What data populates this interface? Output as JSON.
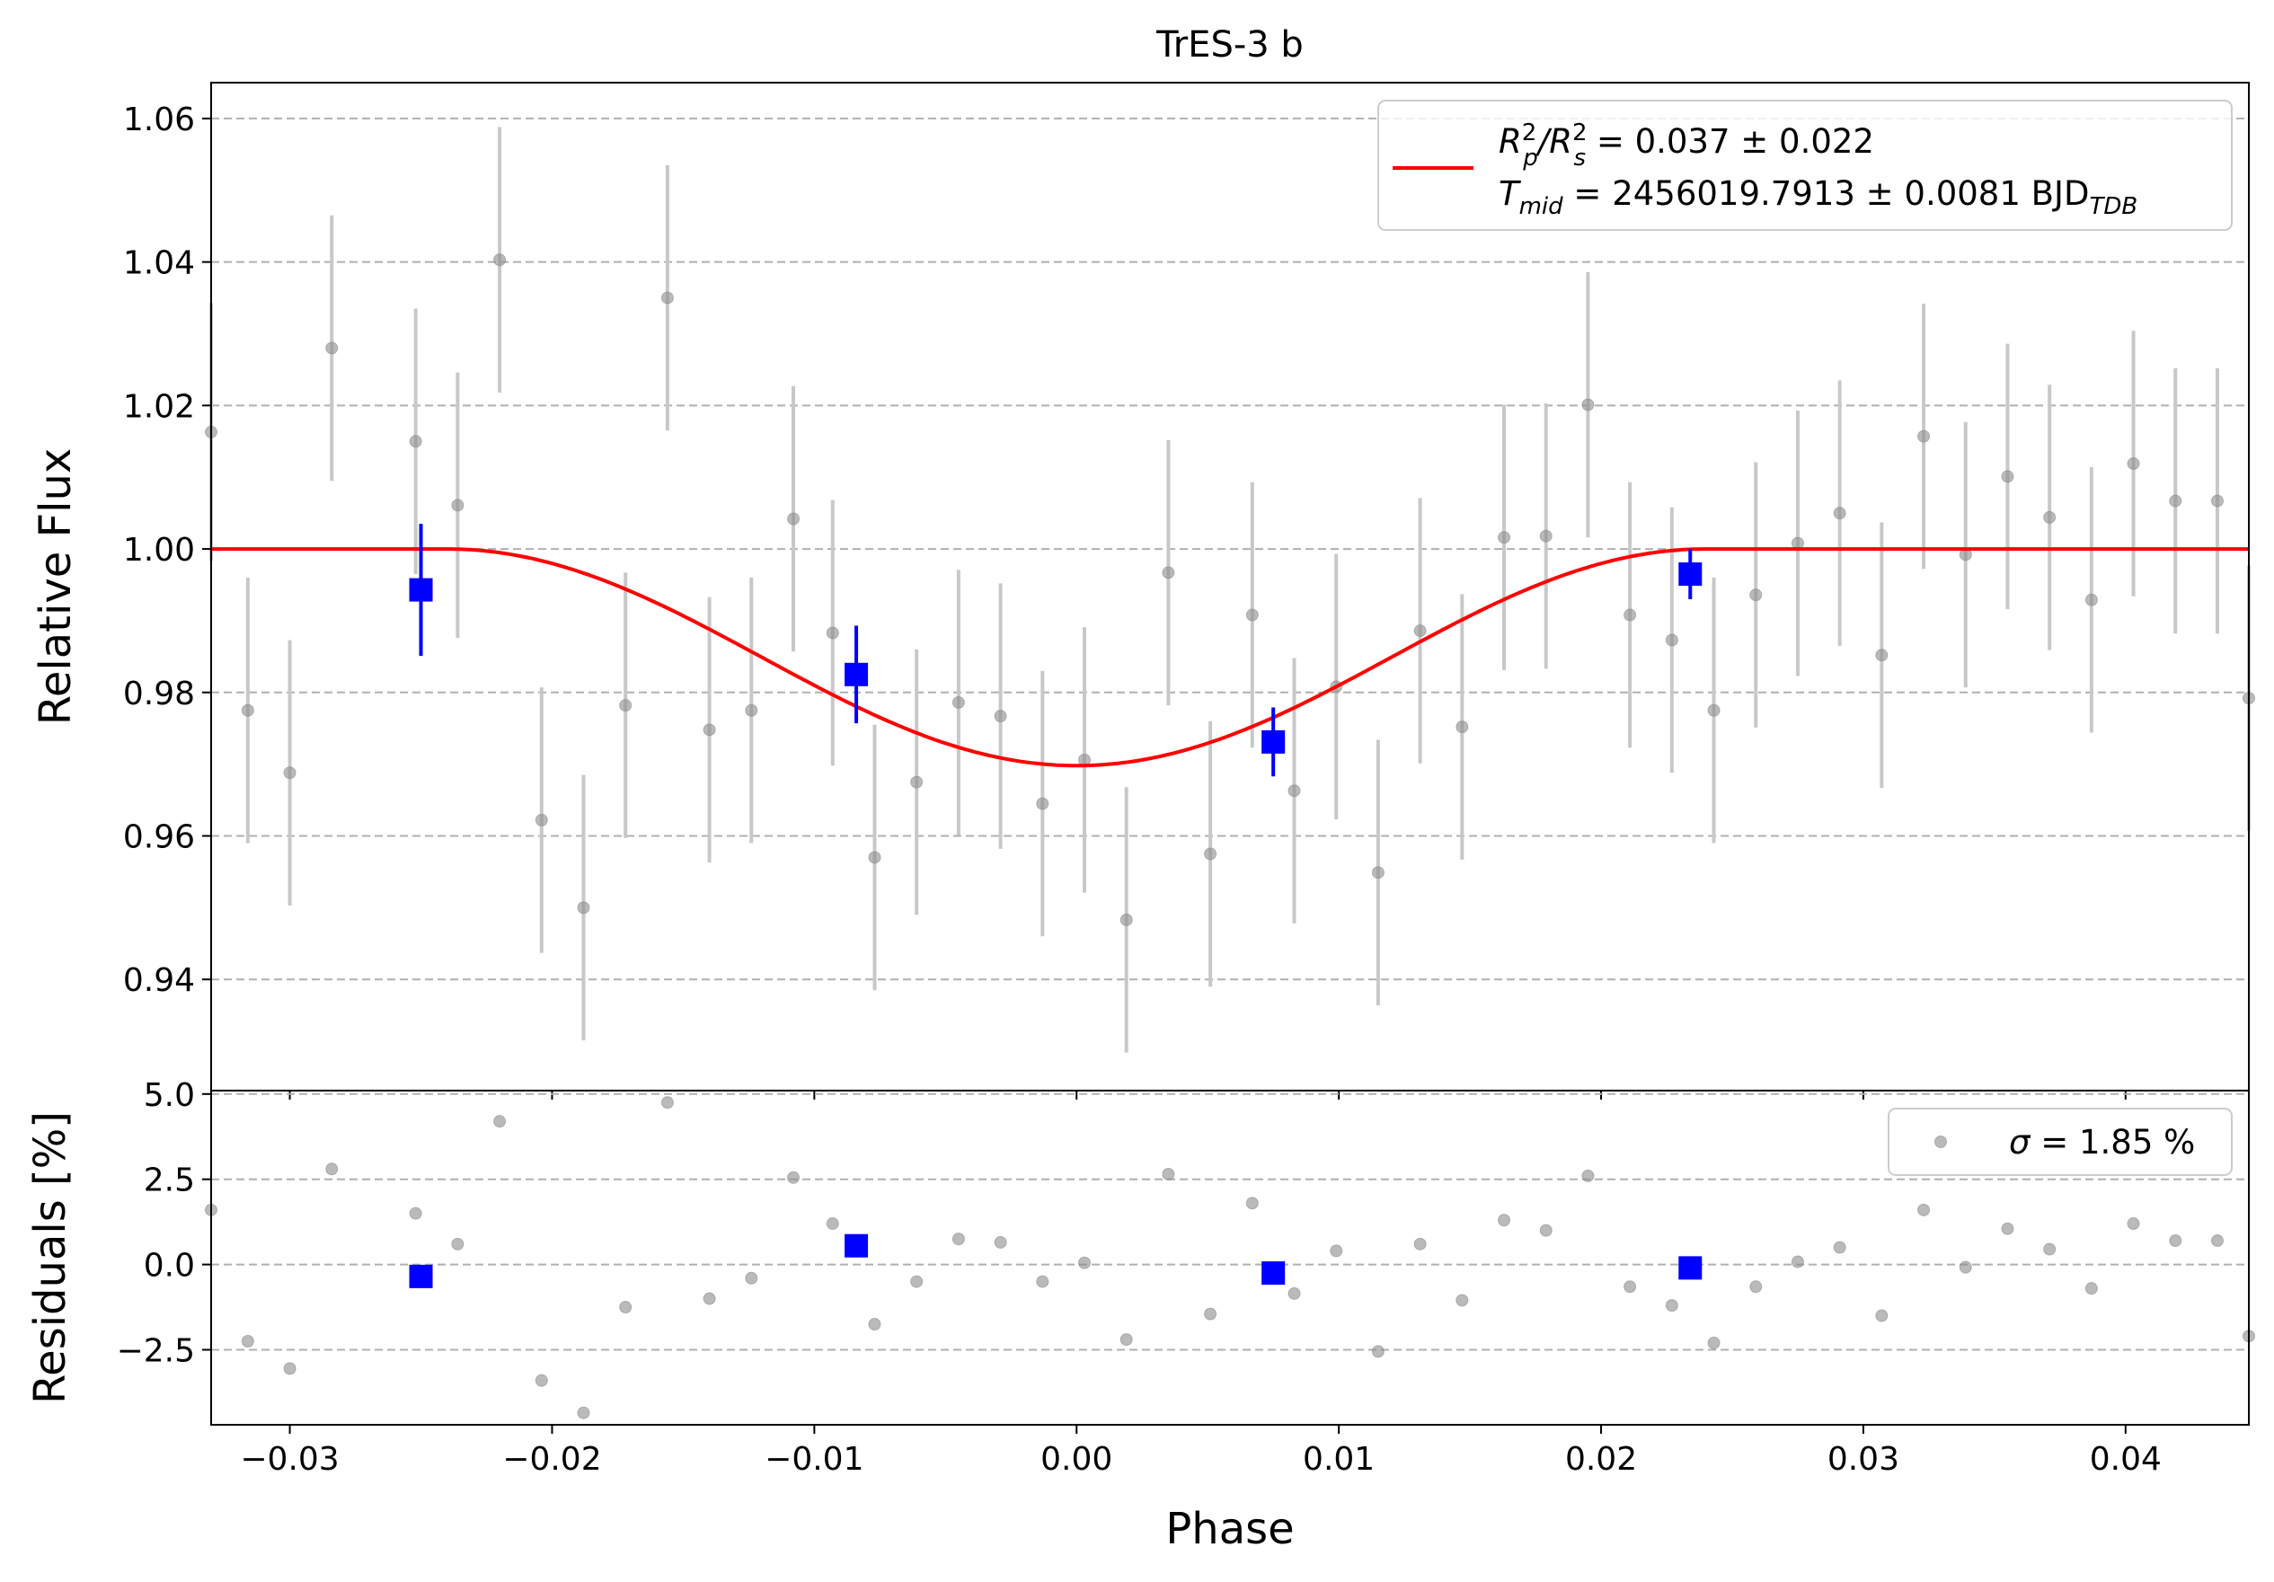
{
  "chart_data": [
    {
      "type": "scatter",
      "title": "TrES-3 b",
      "xlabel": "",
      "ylabel": "Relative Flux",
      "xlim": [
        -0.033,
        0.0447
      ],
      "ylim": [
        0.9245,
        1.065
      ],
      "x_ticks": [
        -0.03,
        -0.02,
        -0.01,
        0.0,
        0.01,
        0.02,
        0.03,
        0.04
      ],
      "x_tick_labels": [
        "−0.03",
        "−0.02",
        "−0.01",
        "0.00",
        "0.01",
        "0.02",
        "0.03",
        "0.04"
      ],
      "y_ticks": [
        0.94,
        0.96,
        0.98,
        1.0,
        1.02,
        1.04,
        1.06
      ],
      "y_tick_labels": [
        "0.94",
        "0.96",
        "0.98",
        "1.00",
        "1.02",
        "1.04",
        "1.06"
      ],
      "grid": "horizontal dashed",
      "legend": {
        "placement": "top-right",
        "entries": [
          {
            "label_main": "R",
            "sup1": "2",
            "sub1": "p",
            "sep": "/R",
            "sup2": "2",
            "sub2": "s",
            "value": " = 0.037 ± 0.022"
          },
          {
            "label_main": "T",
            "sub1": "mid",
            "value": " = 2456019.7913 ± 0.0081 BJD",
            "sub2": "TDB"
          }
        ]
      },
      "colors": {
        "raw": "#8c8c8c",
        "raw_err": "#c8c8c8",
        "binned": "#0000ff",
        "model": "#ff0000",
        "grid": "#b0b0b0"
      },
      "model": {
        "name": "transit model",
        "baseline": 1.0,
        "depth": 0.0302,
        "t_mid": 0.0,
        "t_start": -0.024,
        "t_end": 0.024
      },
      "series": [
        {
          "name": "raw",
          "marker": "circle",
          "points": [
            {
              "x": -0.033,
              "y": 1.0163,
              "err": 0.018
            },
            {
              "x": -0.0316,
              "y": 0.9775,
              "err": 0.0185
            },
            {
              "x": -0.03,
              "y": 0.9688,
              "err": 0.0185
            },
            {
              "x": -0.0284,
              "y": 1.028,
              "err": 0.0185
            },
            {
              "x": -0.0252,
              "y": 1.015,
              "err": 0.0185
            },
            {
              "x": -0.0236,
              "y": 1.0061,
              "err": 0.0185
            },
            {
              "x": -0.022,
              "y": 1.0403,
              "err": 0.0185
            },
            {
              "x": -0.0204,
              "y": 0.9622,
              "err": 0.0185
            },
            {
              "x": -0.0188,
              "y": 0.95,
              "err": 0.0185
            },
            {
              "x": -0.0172,
              "y": 0.9782,
              "err": 0.0185
            },
            {
              "x": -0.0156,
              "y": 1.035,
              "err": 0.0185
            },
            {
              "x": -0.014,
              "y": 0.9748,
              "err": 0.0185
            },
            {
              "x": -0.0124,
              "y": 0.9775,
              "err": 0.0185
            },
            {
              "x": -0.0108,
              "y": 1.0042,
              "err": 0.0185
            },
            {
              "x": -0.0093,
              "y": 0.9883,
              "err": 0.0185
            },
            {
              "x": -0.0077,
              "y": 0.957,
              "err": 0.0185
            },
            {
              "x": -0.0061,
              "y": 0.9675,
              "err": 0.0185
            },
            {
              "x": -0.0045,
              "y": 0.9786,
              "err": 0.0185
            },
            {
              "x": -0.0029,
              "y": 0.9767,
              "err": 0.0185
            },
            {
              "x": -0.0013,
              "y": 0.9645,
              "err": 0.0185
            },
            {
              "x": 0.0003,
              "y": 0.9706,
              "err": 0.0185
            },
            {
              "x": 0.0019,
              "y": 0.9483,
              "err": 0.0185
            },
            {
              "x": 0.0035,
              "y": 0.9967,
              "err": 0.0185
            },
            {
              "x": 0.0051,
              "y": 0.9575,
              "err": 0.0185
            },
            {
              "x": 0.0067,
              "y": 0.9908,
              "err": 0.0185
            },
            {
              "x": 0.0083,
              "y": 0.9663,
              "err": 0.0185
            },
            {
              "x": 0.0099,
              "y": 0.9808,
              "err": 0.0185
            },
            {
              "x": 0.0115,
              "y": 0.9549,
              "err": 0.0185
            },
            {
              "x": 0.0131,
              "y": 0.9886,
              "err": 0.0185
            },
            {
              "x": 0.0147,
              "y": 0.9752,
              "err": 0.0185
            },
            {
              "x": 0.0163,
              "y": 1.0016,
              "err": 0.0185
            },
            {
              "x": 0.0179,
              "y": 1.0018,
              "err": 0.0185
            },
            {
              "x": 0.0195,
              "y": 1.0201,
              "err": 0.0185
            },
            {
              "x": 0.0211,
              "y": 0.9908,
              "err": 0.0185
            },
            {
              "x": 0.0227,
              "y": 0.9873,
              "err": 0.0185
            },
            {
              "x": 0.0243,
              "y": 0.9775,
              "err": 0.0185
            },
            {
              "x": 0.0259,
              "y": 0.9936,
              "err": 0.0185
            },
            {
              "x": 0.0275,
              "y": 1.0008,
              "err": 0.0185
            },
            {
              "x": 0.0291,
              "y": 1.005,
              "err": 0.0185
            },
            {
              "x": 0.0307,
              "y": 0.9852,
              "err": 0.0185
            },
            {
              "x": 0.0323,
              "y": 1.0157,
              "err": 0.0185
            },
            {
              "x": 0.0339,
              "y": 0.9992,
              "err": 0.0185
            },
            {
              "x": 0.0355,
              "y": 1.0101,
              "err": 0.0185
            },
            {
              "x": 0.0371,
              "y": 1.0044,
              "err": 0.0185
            },
            {
              "x": 0.0387,
              "y": 0.9929,
              "err": 0.0185
            },
            {
              "x": 0.0403,
              "y": 1.0119,
              "err": 0.0185
            },
            {
              "x": 0.0419,
              "y": 1.0067,
              "err": 0.0185
            },
            {
              "x": 0.0435,
              "y": 1.0067,
              "err": 0.0185
            },
            {
              "x": 0.0447,
              "y": 0.9792,
              "err": 0.0185
            }
          ]
        },
        {
          "name": "binned",
          "marker": "square",
          "points": [
            {
              "x": -0.025,
              "y": 0.9943,
              "err": 0.0092
            },
            {
              "x": -0.0084,
              "y": 0.9825,
              "err": 0.0068
            },
            {
              "x": 0.0075,
              "y": 0.9731,
              "err": 0.0048
            },
            {
              "x": 0.0234,
              "y": 0.9965,
              "err": 0.0035
            }
          ]
        }
      ]
    },
    {
      "type": "scatter",
      "title": "",
      "xlabel": "Phase",
      "ylabel": "Residuals [%]",
      "xlim": [
        -0.033,
        0.0447
      ],
      "ylim": [
        -4.7,
        5.1
      ],
      "y_ticks": [
        -2.5,
        0.0,
        2.5,
        5.0
      ],
      "y_tick_labels": [
        "−2.5",
        "0.0",
        "2.5",
        "5.0"
      ],
      "grid": "horizontal dashed",
      "legend": {
        "placement": "top-right",
        "sigma_symbol": "σ",
        "sigma_value": " = 1.85 %"
      },
      "series": [
        {
          "name": "raw residuals",
          "marker": "circle",
          "points": [
            {
              "x": -0.033,
              "y": 1.6
            },
            {
              "x": -0.0316,
              "y": -2.25
            },
            {
              "x": -0.03,
              "y": -3.05
            },
            {
              "x": -0.0284,
              "y": 2.8
            },
            {
              "x": -0.0252,
              "y": 1.5
            },
            {
              "x": -0.0236,
              "y": 0.6
            },
            {
              "x": -0.022,
              "y": 4.2
            },
            {
              "x": -0.0204,
              "y": -3.4
            },
            {
              "x": -0.0188,
              "y": -4.35
            },
            {
              "x": -0.0172,
              "y": -1.25
            },
            {
              "x": -0.0156,
              "y": 4.75
            },
            {
              "x": -0.014,
              "y": -1.0
            },
            {
              "x": -0.0124,
              "y": -0.4
            },
            {
              "x": -0.0108,
              "y": 2.55
            },
            {
              "x": -0.0093,
              "y": 1.2
            },
            {
              "x": -0.0077,
              "y": -1.75
            },
            {
              "x": -0.0061,
              "y": -0.5
            },
            {
              "x": -0.0045,
              "y": 0.75
            },
            {
              "x": -0.0029,
              "y": 0.65
            },
            {
              "x": -0.0013,
              "y": -0.5
            },
            {
              "x": 0.0003,
              "y": 0.05
            },
            {
              "x": 0.0019,
              "y": -2.2
            },
            {
              "x": 0.0035,
              "y": 2.65
            },
            {
              "x": 0.0051,
              "y": -1.45
            },
            {
              "x": 0.0067,
              "y": 1.8
            },
            {
              "x": 0.0083,
              "y": -0.85
            },
            {
              "x": 0.0099,
              "y": 0.4
            },
            {
              "x": 0.0115,
              "y": -2.55
            },
            {
              "x": 0.0131,
              "y": 0.6
            },
            {
              "x": 0.0147,
              "y": -1.05
            },
            {
              "x": 0.0163,
              "y": 1.3
            },
            {
              "x": 0.0179,
              "y": 1.0
            },
            {
              "x": 0.0195,
              "y": 2.6
            },
            {
              "x": 0.0211,
              "y": -0.65
            },
            {
              "x": 0.0227,
              "y": -1.2
            },
            {
              "x": 0.0243,
              "y": -2.3
            },
            {
              "x": 0.0259,
              "y": -0.65
            },
            {
              "x": 0.0275,
              "y": 0.08
            },
            {
              "x": 0.0291,
              "y": 0.5
            },
            {
              "x": 0.0307,
              "y": -1.5
            },
            {
              "x": 0.0323,
              "y": 1.6
            },
            {
              "x": 0.0339,
              "y": -0.08
            },
            {
              "x": 0.0355,
              "y": 1.05
            },
            {
              "x": 0.0371,
              "y": 0.45
            },
            {
              "x": 0.0387,
              "y": -0.7
            },
            {
              "x": 0.0403,
              "y": 1.2
            },
            {
              "x": 0.0419,
              "y": 0.7
            },
            {
              "x": 0.0435,
              "y": 0.7
            },
            {
              "x": 0.0447,
              "y": -2.1
            }
          ]
        },
        {
          "name": "binned residuals",
          "marker": "square",
          "points": [
            {
              "x": -0.025,
              "y": -0.35
            },
            {
              "x": -0.0084,
              "y": 0.55
            },
            {
              "x": 0.0075,
              "y": -0.25
            },
            {
              "x": 0.0234,
              "y": -0.1
            }
          ]
        }
      ]
    }
  ]
}
